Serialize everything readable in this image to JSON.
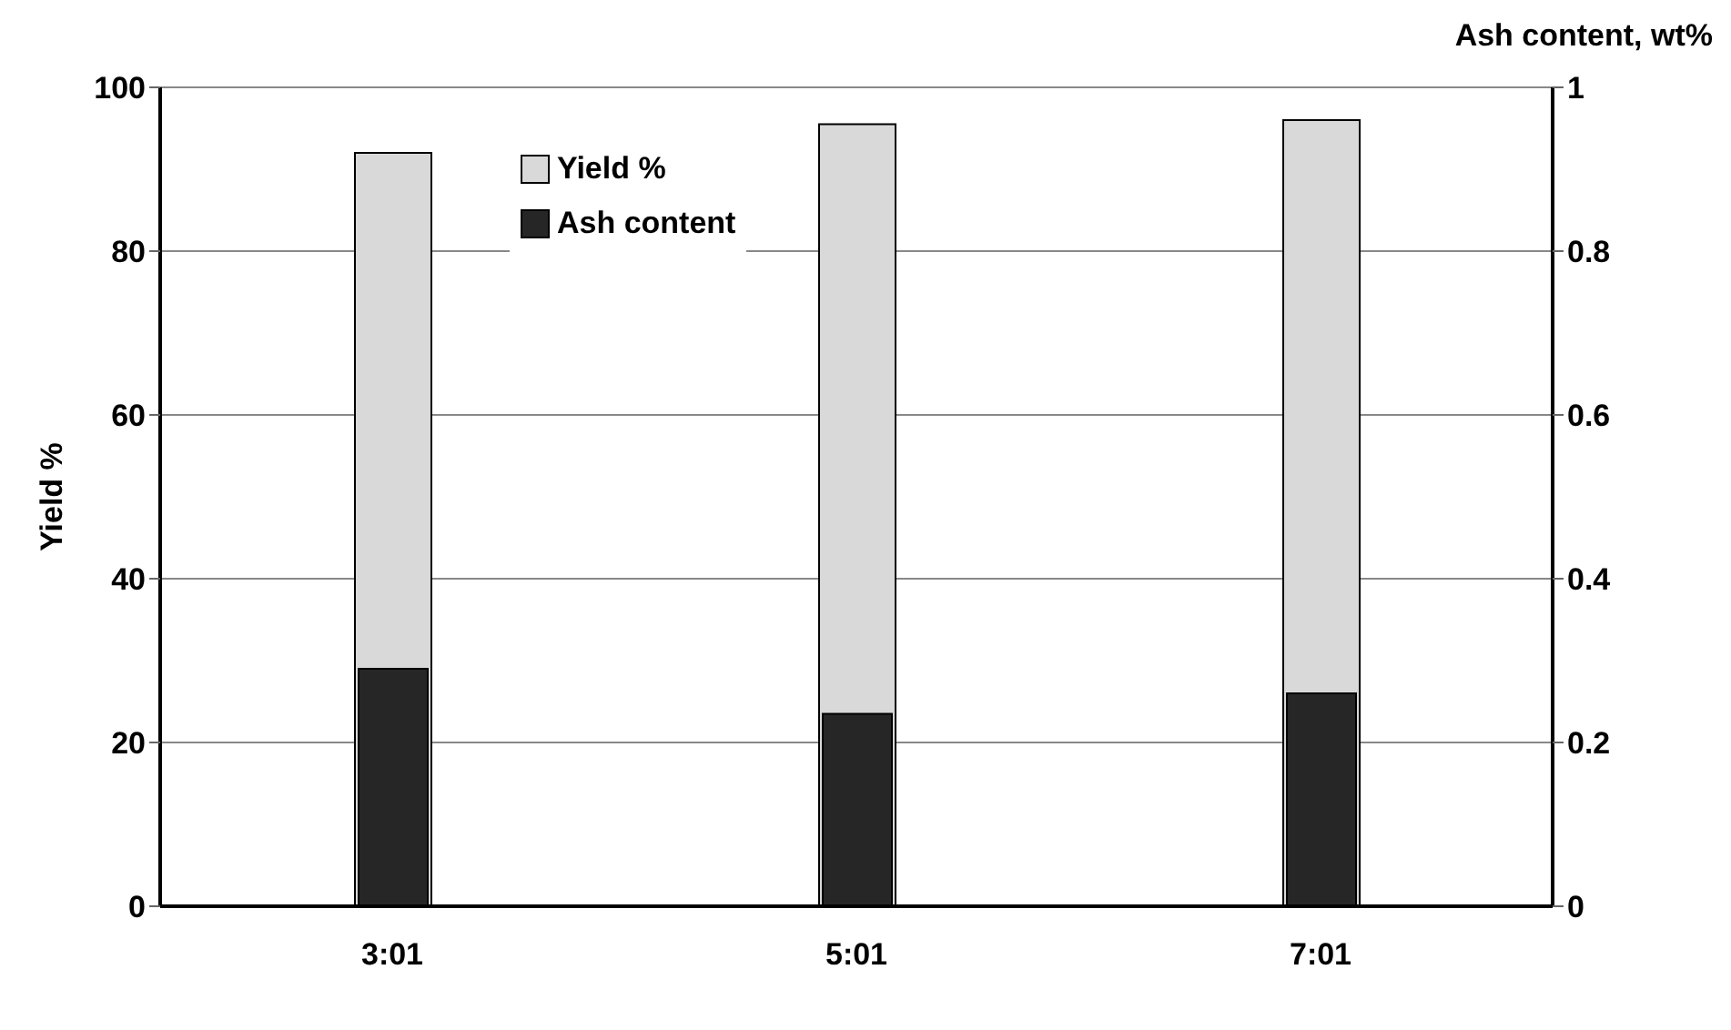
{
  "chart_data": {
    "type": "bar",
    "categories": [
      "3:01",
      "5:01",
      "7:01"
    ],
    "series": [
      {
        "name": "Yield %",
        "color": "#d9d9d9",
        "values": [
          92,
          95.5,
          96
        ]
      },
      {
        "name": "Ash content",
        "color": "#262626",
        "values": [
          0.29,
          0.235,
          0.26
        ],
        "axis": "y2"
      }
    ],
    "ylabel": "Yield %",
    "y2label": "Ash content, wt%",
    "ylim": [
      0,
      100
    ],
    "yticks": [
      0,
      20,
      40,
      60,
      80,
      100
    ],
    "y2lim": [
      0,
      1
    ],
    "y2ticks": [
      0,
      0.2,
      0.4,
      0.6,
      0.8,
      1
    ],
    "grid": "y",
    "legend": "top left"
  }
}
